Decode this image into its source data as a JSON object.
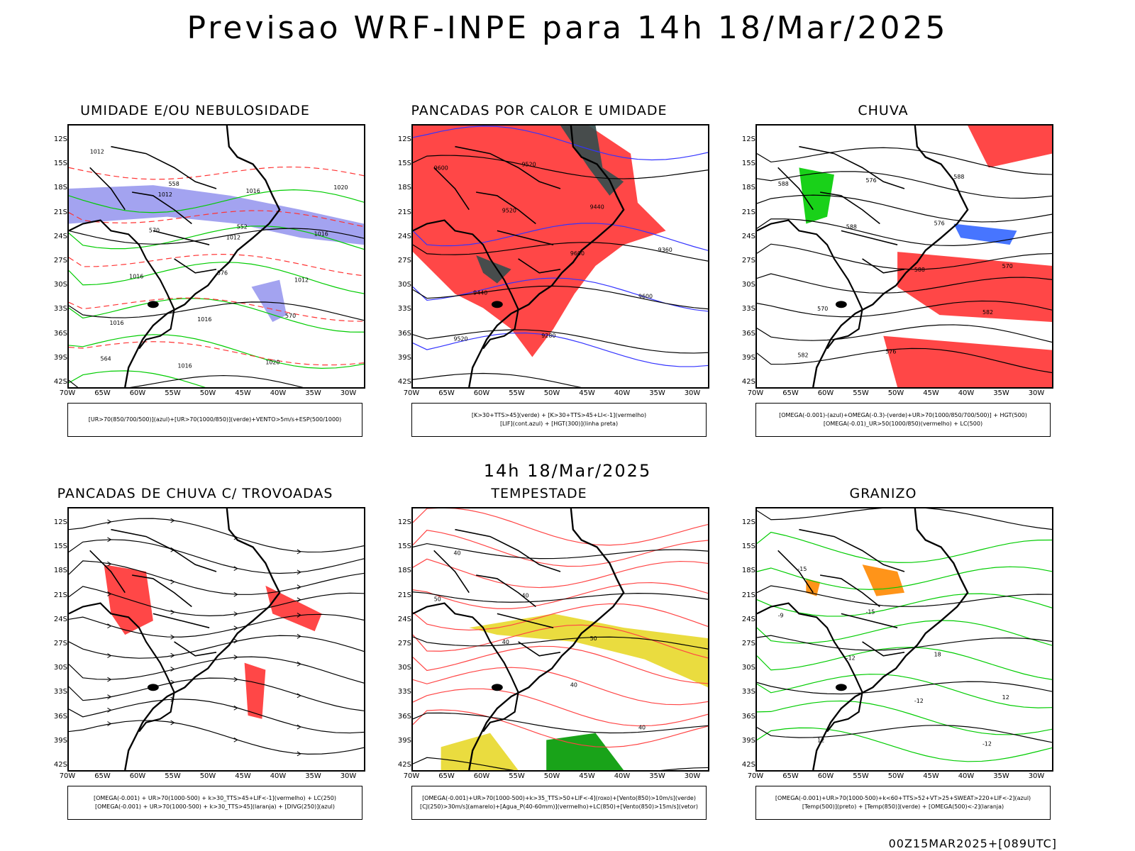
{
  "title": "Previsao WRF-INPE  para 14h 18/Mar/2025",
  "mid_title": "14h 18/Mar/2025",
  "footer": "00Z15MAR2025+[089UTC]",
  "lat_labels": [
    "12S",
    "15S",
    "18S",
    "21S",
    "24S",
    "27S",
    "30S",
    "33S",
    "36S",
    "39S",
    "42S"
  ],
  "lon_labels": [
    "70W",
    "65W",
    "60W",
    "55W",
    "50W",
    "45W",
    "40W",
    "35W",
    "30W"
  ],
  "panels": [
    {
      "title": "UMIDADE E/OU NEBULOSIDADE",
      "legend": [
        "[UR>70(850/700/500)](azul)+[UR>70(1000/850)](verde)+VENTO>5m/s+ESP(500/1000)"
      ],
      "contour_labels": [
        "1012",
        "1012",
        "1012",
        "1012",
        "1016",
        "1016",
        "1016",
        "1016",
        "1016",
        "1016",
        "1020",
        "1020",
        "570",
        "576",
        "570",
        "564",
        "558",
        "552"
      ]
    },
    {
      "title": "PANCADAS POR CALOR E UMIDADE",
      "legend": [
        "[K>30+TTS>45](verde) + [K>30+TTS>45+LI<-1](vermelho)",
        "[LIF](cont.azul) + [HGT(300)](linha preta)"
      ],
      "contour_labels": [
        "9600",
        "9520",
        "9600",
        "9600",
        "9520",
        "9520",
        "9440",
        "9360",
        "9440",
        "9280"
      ]
    },
    {
      "title": "CHUVA",
      "legend": [
        "[OMEGA(-0.001)-(azul)+OMEGA(-0.3)-(verde)+UR>70(1000/850/700/500)] + HGT(500)",
        "[OMEGA(-0.01)_UR>50(1000/850)(vermelho) + LC(500)"
      ],
      "contour_labels": [
        "588",
        "588",
        "588",
        "582",
        "582",
        "576",
        "576",
        "570",
        "570",
        "576",
        "588"
      ]
    },
    {
      "title": "PANCADAS DE CHUVA C/ TROVOADAS",
      "legend": [
        "[OMEGA(-0.001) + UR>70(1000-500) + k>30_TTS>45+LIF<-1](vermelho) + LC(250)",
        "[OMEGA(-0.001) + UR>70(1000-500) + k>30_TTS>45](laranja) + [DIVG(250)](azul)"
      ],
      "contour_labels": []
    },
    {
      "title": "TEMPESTADE",
      "legend": [
        "[OMEGA(-0.001)+UR>70(1000-500)+k>35_TTS>50+LIF<-4](roxo)+[Vento(850)>10m/s](verde)",
        "[CJ(250)>30m/s](amarelo)+[Agua_P(40-60mm)](vermelho)+LC(850)+[Vento(850)>15m/s](vetor)"
      ],
      "contour_labels": [
        "50",
        "40",
        "40",
        "40",
        "40",
        "40",
        "50"
      ]
    },
    {
      "title": "GRANIZO",
      "legend": [
        "[OMEGA(-0.001)+UR>70(1000-500)+k<60+TTS>52+VT>25+SWEAT>220+LIF<-2](azul)",
        "[Temp(500)](preto) + [Temp(850)](verde) + [OMEGA(500)<-2](laranja)"
      ],
      "contour_labels": [
        "-9",
        "-12",
        "-12",
        "-12",
        "-15",
        "-15",
        "18",
        "12",
        "12"
      ]
    }
  ]
}
